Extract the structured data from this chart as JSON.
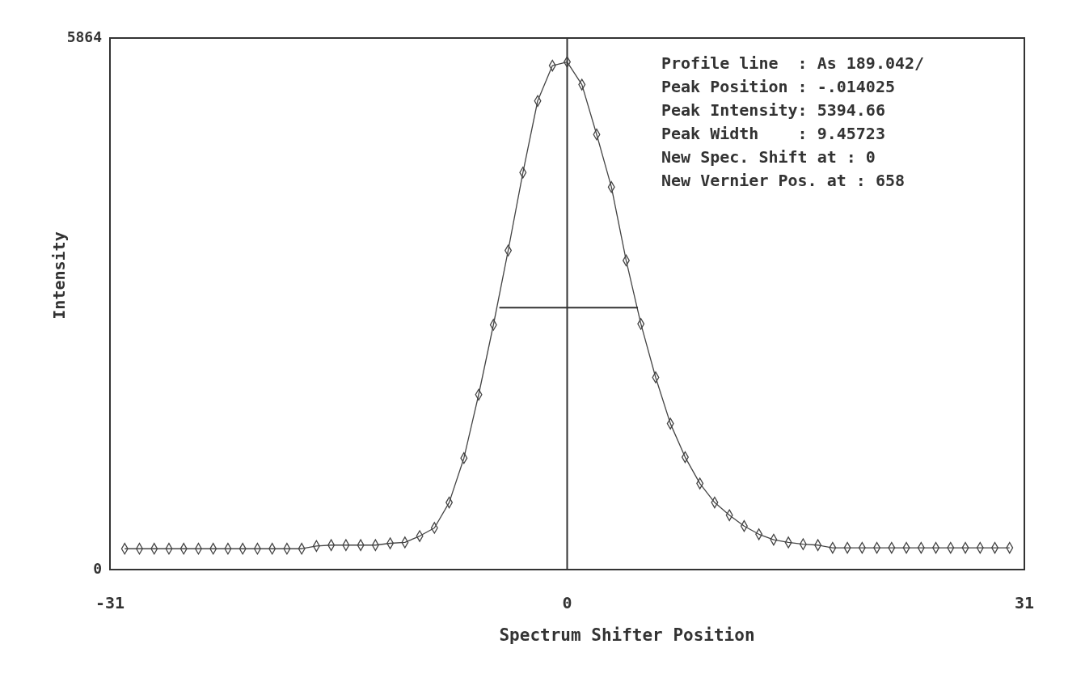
{
  "chart_data": {
    "type": "line",
    "xlabel": "Spectrum Shifter Position",
    "ylabel": "Intensity",
    "xlim": [
      -31,
      31
    ],
    "xticks": [
      -31,
      0,
      31
    ],
    "ylim": [
      0,
      5864
    ],
    "yticks": [
      0,
      5864
    ],
    "marker": "diamond",
    "line_style": "solid",
    "ref_lines": [
      {
        "axis": "x",
        "value": 0,
        "color": "#333333"
      }
    ],
    "annotations": [
      "Profile line  : As 189.042/",
      "Peak Position : -.014025",
      "Peak Intensity: 5394.66",
      "Peak Width    : 9.45723",
      "New Spec. Shift at : 0",
      "New Vernier Pos. at : 658"
    ],
    "series": [
      {
        "color": "#444444",
        "x": [
          -30,
          -29,
          -28,
          -27,
          -26,
          -25,
          -24,
          -23,
          -22,
          -21,
          -20,
          -19,
          -18,
          -17,
          -16,
          -15,
          -14,
          -13,
          -12,
          -11,
          -10,
          -9,
          -8,
          -7,
          -6,
          -5,
          -4,
          -3,
          -2,
          -1,
          0,
          1,
          2,
          3,
          4,
          5,
          6,
          7,
          8,
          9,
          10,
          11,
          12,
          13,
          14,
          15,
          16,
          17,
          18,
          19,
          20,
          21,
          22,
          23,
          24,
          25,
          26,
          27,
          28,
          29,
          30
        ],
        "values": [
          230,
          230,
          230,
          230,
          230,
          230,
          230,
          230,
          230,
          230,
          230,
          230,
          230,
          260,
          270,
          270,
          270,
          270,
          290,
          300,
          370,
          460,
          740,
          1230,
          1930,
          2700,
          3520,
          4380,
          5170,
          5560,
          5600,
          5350,
          4800,
          4220,
          3410,
          2710,
          2120,
          1610,
          1240,
          950,
          740,
          600,
          480,
          390,
          330,
          300,
          280,
          270,
          240,
          240,
          240,
          240,
          240,
          240,
          240,
          240,
          240,
          240,
          240,
          240,
          240
        ]
      },
      {
        "type": "line",
        "color": "#333333",
        "marker": "none",
        "x": [
          -4.6,
          4.8
        ],
        "values": [
          2890,
          2890
        ]
      }
    ]
  }
}
